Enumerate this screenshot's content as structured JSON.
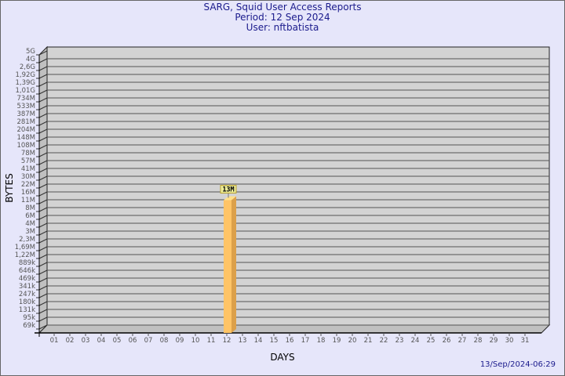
{
  "header": {
    "title": "SARG, Squid User Access Reports",
    "period": "Period: 12 Sep 2024",
    "user": "User: nftbatista"
  },
  "footer": {
    "timestamp": "13/Sep/2024-06:29"
  },
  "chart_data": {
    "type": "bar",
    "xlabel": "DAYS",
    "ylabel": "BYTES",
    "y_scale": "log",
    "grid": true,
    "colors": {
      "bar": "#ffc466",
      "bar_side": "#dca04a",
      "bar_top": "#ffe08a",
      "plot": "#d3d3d3",
      "background": "#e6e6fa",
      "label_box": "#eeee99"
    },
    "y_ticks": [
      "5G",
      "4G",
      "2,6G",
      "1,92G",
      "1,39G",
      "1,01G",
      "734M",
      "533M",
      "387M",
      "281M",
      "204M",
      "148M",
      "108M",
      "78M",
      "57M",
      "41M",
      "30M",
      "22M",
      "16M",
      "11M",
      "8M",
      "6M",
      "4M",
      "3M",
      "2,3M",
      "1,69M",
      "1,22M",
      "889k",
      "646k",
      "469k",
      "341k",
      "247k",
      "180k",
      "131k",
      "95k",
      "69k"
    ],
    "categories": [
      "01",
      "02",
      "03",
      "04",
      "05",
      "06",
      "07",
      "08",
      "09",
      "10",
      "11",
      "12",
      "13",
      "14",
      "15",
      "16",
      "17",
      "18",
      "19",
      "20",
      "21",
      "22",
      "23",
      "24",
      "25",
      "26",
      "27",
      "28",
      "29",
      "30",
      "31"
    ],
    "bars": [
      {
        "day": "12",
        "value": 13000000,
        "label": "13M"
      }
    ]
  }
}
